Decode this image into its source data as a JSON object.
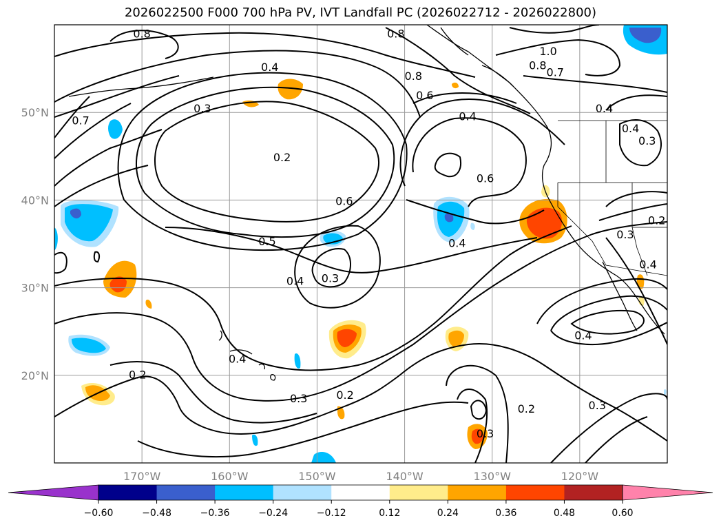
{
  "title": "2026022500 F000 700 hPa PV, IVT Landfall PC (2026022712 - 2026022800)",
  "map": {
    "projection": "cylindrical",
    "lon_range": [
      -180,
      -110
    ],
    "lat_range": [
      10,
      60
    ],
    "lat_ticks": [
      {
        "value": 20,
        "label": "20°N"
      },
      {
        "value": 30,
        "label": "30°N"
      },
      {
        "value": 40,
        "label": "40°N"
      },
      {
        "value": 50,
        "label": "50°N"
      }
    ],
    "lon_ticks": [
      {
        "value": -170,
        "label": "170°W"
      },
      {
        "value": -160,
        "label": "160°W"
      },
      {
        "value": -150,
        "label": "150°W"
      },
      {
        "value": -140,
        "label": "140°W"
      },
      {
        "value": -130,
        "label": "130°W"
      },
      {
        "value": -120,
        "label": "120°W"
      }
    ],
    "grid": true,
    "contour_labels": [
      {
        "text": "0.8",
        "lon": -170.0,
        "lat": 59.0
      },
      {
        "text": "0.8",
        "lon": -141.0,
        "lat": 59.0
      },
      {
        "text": "1.0",
        "lon": -123.6,
        "lat": 57.0
      },
      {
        "text": "0.8",
        "lon": -124.8,
        "lat": 55.4
      },
      {
        "text": "0.7",
        "lon": -122.8,
        "lat": 54.6
      },
      {
        "text": "0.8",
        "lon": -139.0,
        "lat": 54.2
      },
      {
        "text": "0.4",
        "lon": -155.4,
        "lat": 55.2
      },
      {
        "text": "0.6",
        "lon": -137.7,
        "lat": 52.0
      },
      {
        "text": "0.3",
        "lon": -163.1,
        "lat": 50.5
      },
      {
        "text": "0.7",
        "lon": -177.0,
        "lat": 49.1
      },
      {
        "text": "0.4",
        "lon": -132.8,
        "lat": 49.6
      },
      {
        "text": "0.4",
        "lon": -117.2,
        "lat": 50.5
      },
      {
        "text": "0.4",
        "lon": -114.2,
        "lat": 48.2
      },
      {
        "text": "0.3",
        "lon": -112.3,
        "lat": 46.8
      },
      {
        "text": "0.2",
        "lon": -154.0,
        "lat": 44.9
      },
      {
        "text": "0.6",
        "lon": -130.8,
        "lat": 42.5
      },
      {
        "text": "0.6",
        "lon": -146.9,
        "lat": 39.9
      },
      {
        "text": "0.2",
        "lon": -111.2,
        "lat": 37.7
      },
      {
        "text": "0.3",
        "lon": -114.8,
        "lat": 36.1
      },
      {
        "text": "0.5",
        "lon": -155.7,
        "lat": 35.3
      },
      {
        "text": "0.4",
        "lon": -134.0,
        "lat": 35.1
      },
      {
        "text": "0.4",
        "lon": -112.2,
        "lat": 32.7
      },
      {
        "text": "0.3",
        "lon": -148.5,
        "lat": 31.1
      },
      {
        "text": "0.4",
        "lon": -152.5,
        "lat": 30.8
      },
      {
        "text": "0.4",
        "lon": -119.6,
        "lat": 24.6
      },
      {
        "text": "0.4",
        "lon": -159.1,
        "lat": 21.9
      },
      {
        "text": "0.2",
        "lon": -170.5,
        "lat": 20.1
      },
      {
        "text": "0.3",
        "lon": -152.1,
        "lat": 17.4
      },
      {
        "text": "0.2",
        "lon": -146.8,
        "lat": 17.8
      },
      {
        "text": "0.2",
        "lon": -126.1,
        "lat": 16.2
      },
      {
        "text": "0.3",
        "lon": -118.0,
        "lat": 16.6
      },
      {
        "text": "0.3",
        "lon": -130.8,
        "lat": 13.4
      }
    ]
  },
  "colorbar": {
    "levels": [
      "−0.60",
      "−0.48",
      "−0.36",
      "−0.24",
      "−0.12",
      "0.12",
      "0.24",
      "0.36",
      "0.48",
      "0.60"
    ],
    "colors": [
      "#9932cc",
      "#00008b",
      "#3a5fcd",
      "#00bfff",
      "#b0e2ff",
      "#ffffff",
      "#ffec8b",
      "#ffa500",
      "#ff4500",
      "#b22222",
      "#ff82ab"
    ]
  },
  "shading_colors": {
    "pos1": "#ffec8b",
    "pos2": "#ffa500",
    "pos3": "#ff4500",
    "neg1": "#b0e2ff",
    "neg2": "#00bfff",
    "neg3": "#3a5fcd"
  }
}
